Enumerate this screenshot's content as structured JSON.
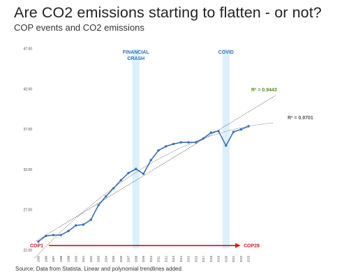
{
  "header": {
    "title": "Are CO2 emissions starting to flatten - or not?",
    "subtitle": "COP events and CO2 emissions"
  },
  "footer": {
    "source": "Source: Data from Statista. Linear and polynomial trendlines added."
  },
  "chart_data": {
    "type": "line",
    "x": [
      "1995",
      "1996",
      "1997",
      "1998",
      "1999",
      "2000",
      "2001",
      "2002",
      "2003",
      "2004",
      "2005",
      "2006",
      "2007",
      "2008",
      "2009",
      "2010",
      "2011",
      "2012",
      "2013",
      "2014",
      "2015",
      "2016",
      "2017",
      "2018",
      "2019",
      "2020",
      "2021",
      "2022",
      "2023"
    ],
    "series": [
      {
        "values": [
          23.1,
          23.8,
          23.9,
          23.9,
          24.4,
          25.1,
          25.2,
          25.8,
          27.6,
          28.7,
          29.7,
          30.7,
          31.6,
          32.1,
          31.5,
          33.2,
          34.4,
          34.9,
          35.2,
          35.4,
          35.4,
          35.4,
          35.9,
          36.6,
          36.8,
          35.0,
          36.7,
          37.0,
          37.4
        ]
      }
    ],
    "ylim": [
      22,
      47
    ],
    "yticks": [
      "22.00",
      "27.00",
      "32.00",
      "37.00",
      "42.00",
      "47.00"
    ],
    "trendlines": [
      {
        "type": "linear",
        "label": "R² = 0.9443",
        "color": "#5a8e1e"
      },
      {
        "type": "polynomial",
        "label": "R² = 0.9701",
        "color": "#555555"
      }
    ],
    "bands": [
      {
        "label_lines": [
          "FINANCIAL",
          "CRASH"
        ],
        "year": "2008"
      },
      {
        "label_lines": [
          "COVID"
        ],
        "year": "2020"
      }
    ],
    "cop_arrow": {
      "start_label": "COP1",
      "end_label": "COP28",
      "color": "#d42020"
    },
    "line_color": "#3b6fb6",
    "band_color": "#daf0fb",
    "grid": false
  }
}
